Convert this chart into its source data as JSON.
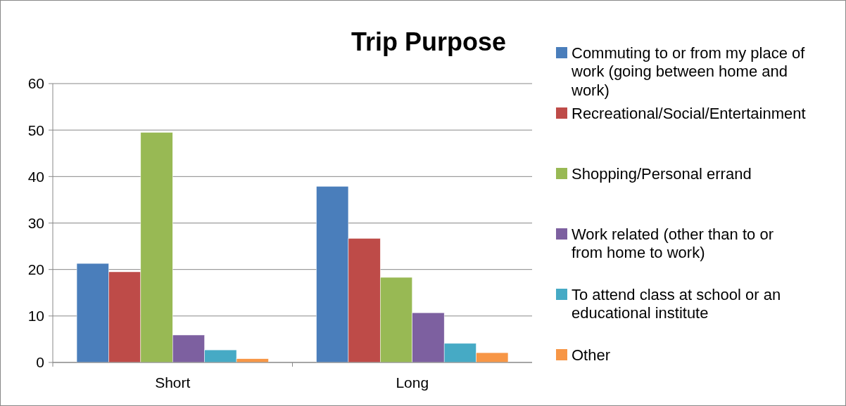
{
  "chart_data": {
    "type": "bar",
    "title": "Trip Purpose",
    "categories": [
      "Short",
      "Long"
    ],
    "series": [
      {
        "name": "Commuting to or from my place of work (going between home and work)",
        "color": "#4a7ebb",
        "values": [
          21.3,
          37.9
        ]
      },
      {
        "name": "Recreational/Social/Entertainment",
        "color": "#be4b48",
        "values": [
          19.5,
          26.7
        ]
      },
      {
        "name": "Shopping/Personal errand",
        "color": "#98b954",
        "values": [
          49.5,
          18.3
        ]
      },
      {
        "name": "Work related (other than to or from home to work)",
        "color": "#7d60a0",
        "values": [
          5.9,
          10.7
        ]
      },
      {
        "name": "To attend class at school or an educational institute",
        "color": "#46aac5",
        "values": [
          2.7,
          4.1
        ]
      },
      {
        "name": "Other",
        "color": "#f79646",
        "values": [
          0.8,
          2.1
        ]
      }
    ],
    "ylim": [
      0,
      60
    ],
    "yticks": [
      0,
      10,
      20,
      30,
      40,
      50,
      60
    ],
    "grid": "y",
    "legend": "right"
  }
}
